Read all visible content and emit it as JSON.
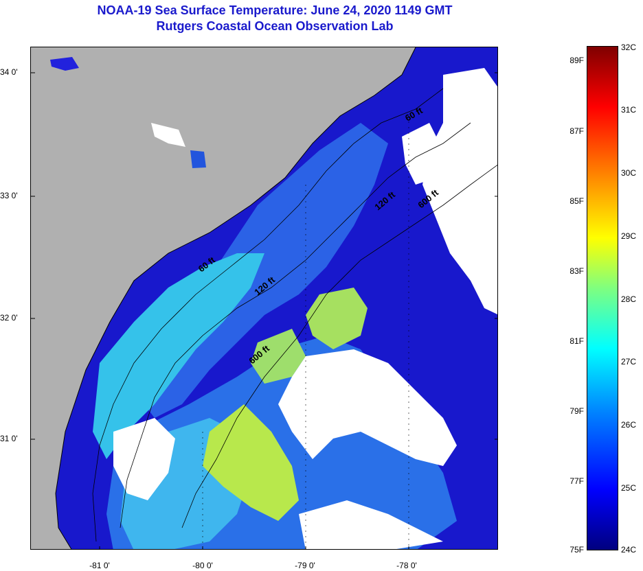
{
  "title": {
    "line1": "NOAA-19 Sea Surface Temperature:  June 24, 2020 1149 GMT",
    "line2": "Rutgers Coastal Ocean Observation Lab"
  },
  "map": {
    "lat_labels": [
      "34 0'",
      "33 0'",
      "32 0'",
      "31 0'"
    ],
    "lon_labels": [
      "-81 0'",
      "-80 0'",
      "-79 0'",
      "-78 0'"
    ],
    "contour_labels": [
      "60 ft",
      "120 ft",
      "600 ft",
      "60 ft",
      "120 ft",
      "600 ft"
    ],
    "colors": {
      "land": "#b0b0b0",
      "cloud": "#ffffff",
      "deep_blue": "#1414c8",
      "mid_blue": "#2a6ee8",
      "cyan": "#28c8e8",
      "yellow_green": "#b4e650"
    }
  },
  "colorbar": {
    "celsius_labels": [
      "32C",
      "31C",
      "30C",
      "29C",
      "28C",
      "27C",
      "26C",
      "25C",
      "24C"
    ],
    "fahrenheit_labels": [
      "89F",
      "87F",
      "85F",
      "83F",
      "81F",
      "79F",
      "77F",
      "75F"
    ],
    "range_c": [
      24,
      32
    ],
    "colors": [
      "#00007f",
      "#0000ff",
      "#0080ff",
      "#00ffff",
      "#7fff7f",
      "#ffff00",
      "#ff8000",
      "#ff0000",
      "#7f0000"
    ]
  }
}
